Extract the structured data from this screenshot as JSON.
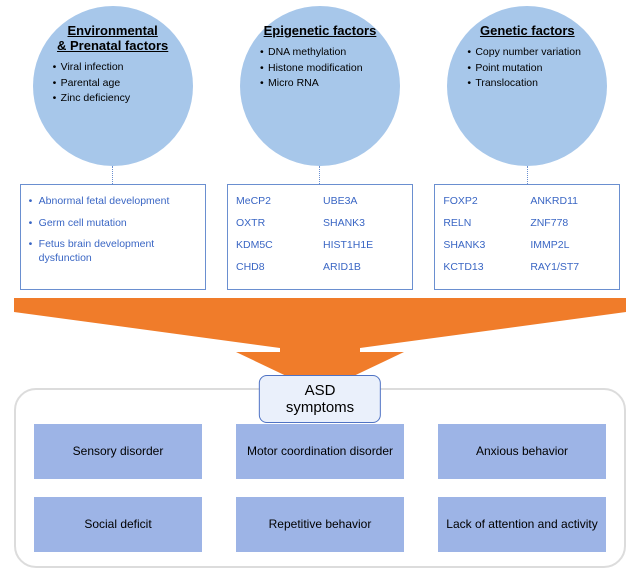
{
  "colors": {
    "circle_fill": "#a7c7ea",
    "box_border": "#6a8fd0",
    "gene_text": "#3a66c4",
    "arrow_fill": "#f07c2a",
    "symptom_fill": "#9db4e6",
    "panel_border": "#dcdcdc",
    "title_box_fill": "#eaf0fb",
    "title_box_border": "#4f73c4"
  },
  "columns": [
    {
      "title": "Environmental\n& Prenatal factors",
      "items": [
        "Viral infection",
        "Parental age",
        "Zinc deficiency"
      ],
      "box": {
        "type": "bullets",
        "bullets": [
          "Abnormal fetal development",
          "Germ cell mutation",
          "Fetus brain development dysfunction"
        ]
      }
    },
    {
      "title": "Epigenetic factors",
      "items": [
        "DNA methylation",
        "Histone modification",
        "Micro RNA"
      ],
      "box": {
        "type": "genes",
        "genes": [
          "MeCP2",
          "UBE3A",
          "OXTR",
          "SHANK3",
          "KDM5C",
          "HIST1H1E",
          "CHD8",
          "ARID1B"
        ]
      }
    },
    {
      "title": "Genetic factors",
      "items": [
        "Copy number variation",
        "Point mutation",
        "Translocation"
      ],
      "box": {
        "type": "genes",
        "genes": [
          "FOXP2",
          "ANKRD11",
          "RELN",
          "ZNF778",
          "SHANK3",
          "IMMP2L",
          "KCTD13",
          "RAY1/ST7"
        ]
      }
    }
  ],
  "symptoms_title": "ASD\nsymptoms",
  "symptoms": [
    "Sensory disorder",
    "Motor coordination disorder",
    "Anxious behavior",
    "Social deficit",
    "Repetitive behavior",
    "Lack of attention and activity"
  ]
}
